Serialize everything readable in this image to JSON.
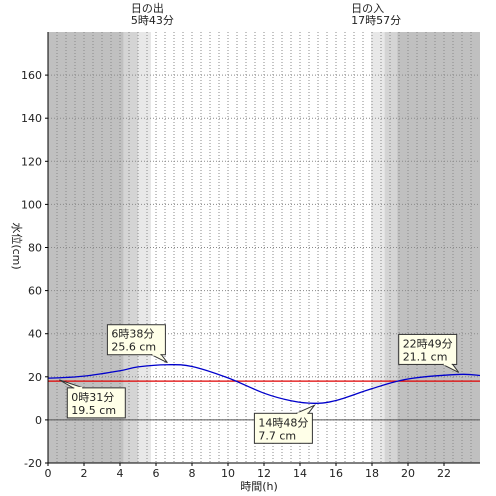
{
  "chart_data": {
    "type": "line",
    "title": "",
    "xlabel": "時間(h)",
    "ylabel": "水位(cm)",
    "xlim": [
      0,
      24
    ],
    "ylim": [
      -20,
      180
    ],
    "x_ticks": [
      0,
      2,
      4,
      6,
      8,
      10,
      12,
      14,
      16,
      18,
      20,
      22
    ],
    "x_tick_labels": [
      "0",
      "2",
      "4",
      "6",
      "8",
      "10",
      "12",
      "14",
      "16",
      "18",
      "20",
      "22"
    ],
    "y_ticks": [
      -20,
      0,
      20,
      40,
      60,
      80,
      100,
      120,
      140,
      160
    ],
    "y_tick_labels": [
      "-20",
      "0",
      "20",
      "40",
      "60",
      "80",
      "100",
      "120",
      "140",
      "160"
    ],
    "grid": true,
    "reference_line": {
      "y": 18,
      "color": "#e00000"
    },
    "series": [
      {
        "color": "#0000cc",
        "x": [
          0,
          0.5167,
          2,
          4,
          5,
          6.6333,
          8,
          10,
          12,
          13.5,
          14.8,
          16,
          18,
          20,
          22.8167,
          24
        ],
        "y": [
          19.4,
          19.5,
          20.3,
          22.8,
          24.6,
          25.6,
          24.8,
          19.5,
          12.4,
          8.9,
          7.7,
          9.0,
          14.5,
          19.0,
          21.1,
          20.6
        ]
      }
    ],
    "sun": {
      "sunrise_label": "日の出",
      "sunrise_time": "5時43分",
      "sunset_label": "日の入",
      "sunset_time": "17時57分",
      "sunrise_hour": 5.7167,
      "sunset_hour": 17.95,
      "night_color": "#c0c0c0",
      "twilight_dark_color": "#d4d4d4",
      "twilight_light_color": "#e8e8e8",
      "day_color": "#ffffff",
      "shade_bands": [
        {
          "from": 0,
          "to": 4.2,
          "shade": "night"
        },
        {
          "from": 4.2,
          "to": 5.0,
          "shade": "dark"
        },
        {
          "from": 5.0,
          "to": 5.72,
          "shade": "light"
        },
        {
          "from": 17.95,
          "to": 18.7,
          "shade": "light"
        },
        {
          "from": 18.7,
          "to": 19.4,
          "shade": "dark"
        },
        {
          "from": 19.4,
          "to": 24,
          "shade": "night"
        }
      ]
    },
    "annotations": [
      {
        "x": 0.5167,
        "y": 19.5,
        "time": "0時31分",
        "level": "19.5 cm",
        "placement": "below-right"
      },
      {
        "x": 6.6333,
        "y": 25.6,
        "time": "6時38分",
        "level": "25.6 cm",
        "placement": "above-left"
      },
      {
        "x": 14.8,
        "y": 7.7,
        "time": "14時48分",
        "level": "7.7 cm",
        "placement": "below-left"
      },
      {
        "x": 22.8167,
        "y": 21.1,
        "time": "22時49分",
        "level": "21.1 cm",
        "placement": "above-left"
      }
    ]
  }
}
